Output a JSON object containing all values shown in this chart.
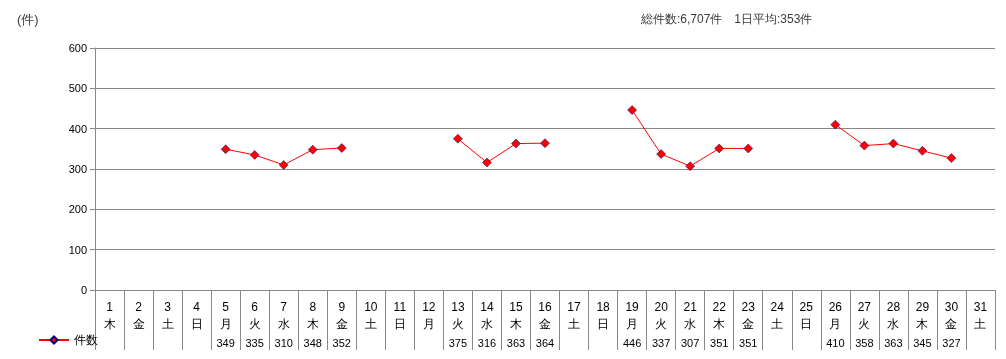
{
  "chart_data": {
    "type": "line",
    "ylabel": "(件)",
    "annotations": [
      "総件数:6,707件　1日平均:353件"
    ],
    "categories": [
      "1\n木",
      "2\n金",
      "3\n土",
      "4\n日",
      "5\n月",
      "6\n火",
      "7\n水",
      "8\n木",
      "9\n金",
      "10\n土",
      "11\n日",
      "12\n月",
      "13\n火",
      "14\n水",
      "15\n木",
      "16\n金",
      "17\n土",
      "18\n日",
      "19\n月",
      "20\n火",
      "21\n水",
      "22\n木",
      "23\n金",
      "24\n土",
      "25\n日",
      "26\n月",
      "27\n火",
      "28\n水",
      "29\n木",
      "30\n金",
      "31\n土"
    ],
    "series": [
      {
        "name": "件数",
        "color": "#ff0000",
        "values": [
          null,
          null,
          null,
          null,
          349,
          335,
          310,
          348,
          352,
          null,
          null,
          null,
          375,
          316,
          363,
          364,
          null,
          null,
          446,
          337,
          307,
          351,
          351,
          null,
          null,
          410,
          358,
          363,
          345,
          327,
          null
        ]
      }
    ],
    "ylim": [
      0,
      600
    ],
    "yticks": [
      0,
      100,
      200,
      300,
      400,
      500,
      600
    ],
    "grid": "y",
    "legend": "bottom left",
    "marker": "diamond",
    "line_style": "solid",
    "data_labels": true
  }
}
